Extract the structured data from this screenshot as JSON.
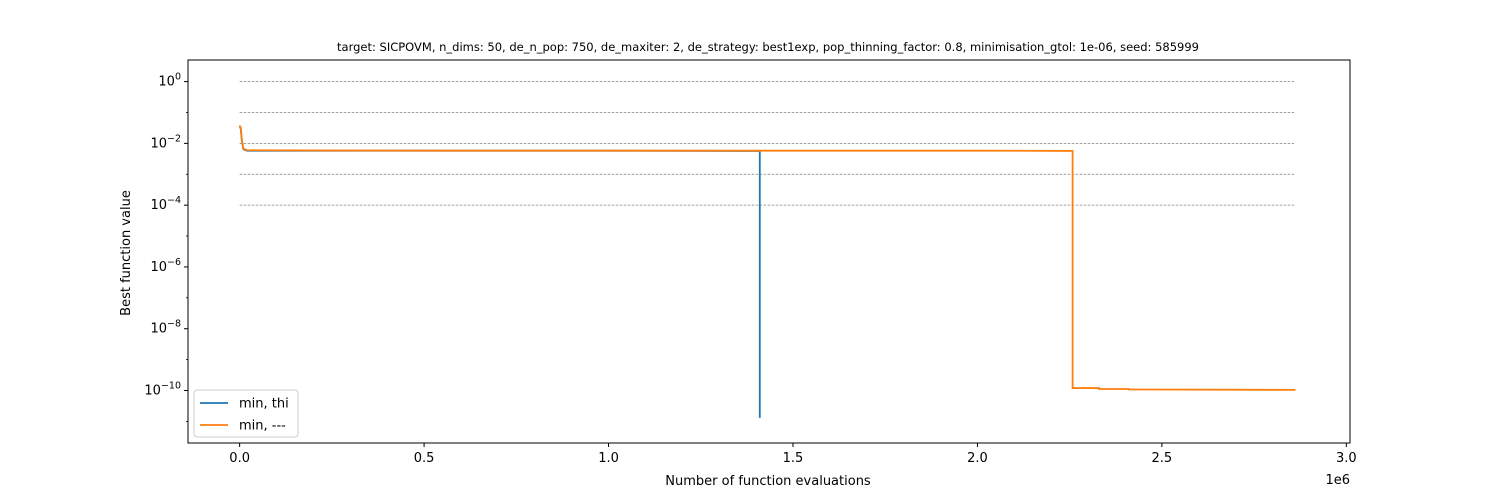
{
  "chart_data": {
    "type": "line",
    "title": "target: SICPOVM, n_dims: 50, de_n_pop: 750, de_maxiter: 2, de_strategy: best1exp, pop_thinning_factor: 0.8, minimisation_gtol: 1e-06, seed: 585999",
    "xlabel": "Number of function evaluations",
    "ylabel": "Best function value",
    "x_offset_label": "1e6",
    "x_scale": "linear",
    "y_scale": "log",
    "xlim": [
      -140000,
      3010000
    ],
    "ylim": [
      2e-12,
      5
    ],
    "x_ticks": [
      {
        "value": 0,
        "label": "0.0"
      },
      {
        "value": 500000,
        "label": "0.5"
      },
      {
        "value": 1000000,
        "label": "1.0"
      },
      {
        "value": 1500000,
        "label": "1.5"
      },
      {
        "value": 2000000,
        "label": "2.0"
      },
      {
        "value": 2500000,
        "label": "2.5"
      },
      {
        "value": 3000000,
        "label": "3.0"
      }
    ],
    "y_ticks": [
      {
        "exp": 0,
        "base": "10",
        "sup": "0"
      },
      {
        "exp": -2,
        "base": "10",
        "sup": "−2"
      },
      {
        "exp": -4,
        "base": "10",
        "sup": "−4"
      },
      {
        "exp": -6,
        "base": "10",
        "sup": "−6"
      },
      {
        "exp": -8,
        "base": "10",
        "sup": "−8"
      },
      {
        "exp": -10,
        "base": "10",
        "sup": "−10"
      }
    ],
    "reference_lines": {
      "values": [
        1,
        0.1,
        0.01,
        0.001,
        0.0001
      ],
      "x_range": [
        0,
        2860000
      ],
      "color": "#808080",
      "style": "dashed"
    },
    "legend": {
      "position": "lower-left"
    },
    "series": [
      {
        "name": "min, thi",
        "color": "#1f77b4",
        "points": [
          [
            0,
            0.036
          ],
          [
            3000,
            0.03
          ],
          [
            6000,
            0.012
          ],
          [
            10000,
            0.0065
          ],
          [
            20000,
            0.0058
          ],
          [
            200000,
            0.0058
          ],
          [
            600000,
            0.0058
          ],
          [
            1000000,
            0.0058
          ],
          [
            1410000,
            0.0057
          ],
          [
            1410000,
            1.3e-11
          ]
        ]
      },
      {
        "name": "min, ---",
        "color": "#ff7f0e",
        "points": [
          [
            0,
            0.038
          ],
          [
            3000,
            0.032
          ],
          [
            6000,
            0.013
          ],
          [
            10000,
            0.0068
          ],
          [
            20000,
            0.006
          ],
          [
            200000,
            0.0059
          ],
          [
            600000,
            0.0058
          ],
          [
            1000000,
            0.0058
          ],
          [
            1500000,
            0.0058
          ],
          [
            2000000,
            0.0058
          ],
          [
            2258000,
            0.0057
          ],
          [
            2258000,
            1.2e-10
          ],
          [
            2330000,
            1.2e-10
          ],
          [
            2330000,
            1.12e-10
          ],
          [
            2410000,
            1.12e-10
          ],
          [
            2410000,
            1.08e-10
          ],
          [
            2860000,
            1.05e-10
          ],
          [
            2860000,
            1e-10
          ]
        ]
      }
    ]
  }
}
